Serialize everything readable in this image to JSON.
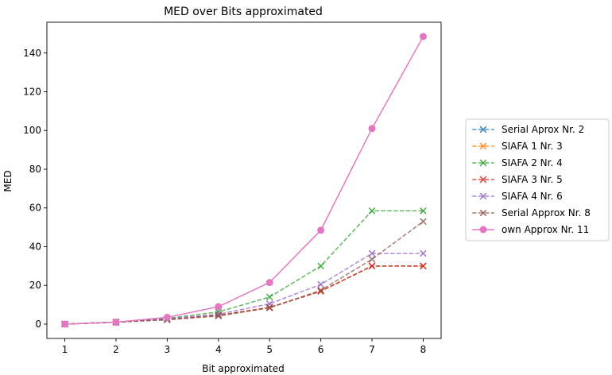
{
  "chart_data": {
    "type": "line",
    "title": "MED over Bits approximated",
    "xlabel": "Bit approximated",
    "ylabel": "MED",
    "x": [
      1,
      2,
      3,
      4,
      5,
      6,
      7,
      8
    ],
    "xlim": [
      0.65,
      8.35
    ],
    "ylim": [
      -7.4,
      155.9
    ],
    "xticks": [
      1,
      2,
      3,
      4,
      5,
      6,
      7,
      8
    ],
    "yticks": [
      0,
      20,
      40,
      60,
      80,
      100,
      120,
      140
    ],
    "grid": false,
    "legend_position": "center-right outside",
    "series": [
      {
        "name": "Serial Aprox Nr. 2",
        "color": "#1f77b4",
        "style": "dashed",
        "marker": "x",
        "values": [
          0.0,
          1.0,
          2.5,
          4.5,
          8.6,
          17.0,
          30.0,
          30.0
        ]
      },
      {
        "name": "SIAFA 1 Nr. 3",
        "color": "#ff7f0e",
        "style": "dashed",
        "marker": "x",
        "values": [
          0.0,
          1.0,
          2.5,
          4.5,
          8.6,
          17.0,
          30.0,
          30.0
        ]
      },
      {
        "name": "SIAFA 2 Nr. 4",
        "color": "#2ca02c",
        "style": "dashed",
        "marker": "x",
        "values": [
          0.0,
          1.0,
          3.0,
          6.3,
          14.0,
          30.0,
          58.5,
          58.5
        ]
      },
      {
        "name": "SIAFA 3 Nr. 5",
        "color": "#d62728",
        "style": "dashed",
        "marker": "x",
        "values": [
          0.0,
          1.0,
          2.5,
          4.5,
          8.6,
          17.0,
          30.0,
          30.0
        ]
      },
      {
        "name": "SIAFA 4 Nr. 6",
        "color": "#9467bd",
        "style": "dashed",
        "marker": "x",
        "values": [
          0.0,
          1.0,
          2.7,
          5.1,
          10.5,
          20.5,
          36.5,
          36.5
        ]
      },
      {
        "name": "Serial Approx Nr. 8",
        "color": "#8c564b",
        "style": "dashed",
        "marker": "x",
        "values": [
          0.0,
          1.0,
          2.2,
          4.2,
          8.4,
          17.5,
          33.5,
          53.0
        ]
      },
      {
        "name": "own Approx Nr. 11",
        "color": "#e377c2",
        "style": "solid",
        "marker": "o",
        "values": [
          0.0,
          1.0,
          3.5,
          9.0,
          21.5,
          48.5,
          101.0,
          148.5
        ]
      }
    ]
  }
}
